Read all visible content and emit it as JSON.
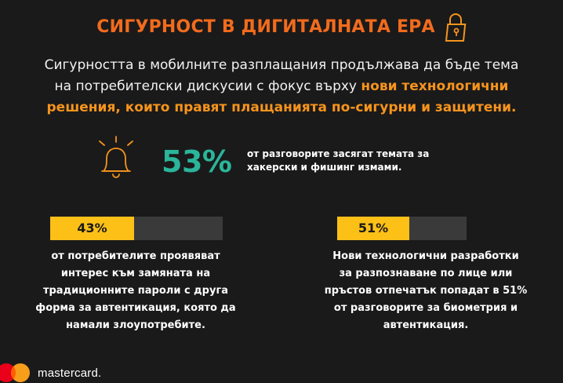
{
  "header": {
    "title": "СИГУРНОСТ В ДИГИТАЛНАТА ЕРА",
    "icon": "lock-icon"
  },
  "intro": {
    "line1": "Сигурността в мобилните разплащания продължава да бъде тема",
    "line2_plain": "на потребителски дискусии с фокус върху ",
    "line2_highlight": "нови технологични",
    "line3_highlight": "решения, които правят плащанията по-сигурни и защитени."
  },
  "main_stat": {
    "icon": "bell-icon",
    "value": "53%",
    "line1": "от разговорите засягат темата за",
    "line2": "хакерски и фишинг измами."
  },
  "stats": [
    {
      "value_label": "43%",
      "value": 0.43,
      "lines": [
        "от потребителите проявяват",
        "интерес към замяната на",
        "традиционните пароли с друга",
        "форма за автентикация, която да",
        "намали злоупотребите."
      ]
    },
    {
      "value_label": "51%",
      "value": 0.51,
      "lines": [
        "Нови технологични разработки",
        "за разпознаване по лице или",
        "пръстов отпечатък попадат в 51%",
        "от разговорите за биометрия и",
        "автентикация."
      ]
    }
  ],
  "footer": {
    "brand": "mastercard.",
    "logo": "mastercard-logo"
  },
  "colors": {
    "background": "#1a1a1a",
    "title": "#f26b1d",
    "highlight": "#f7941d",
    "big_stat": "#2bb59a",
    "bar_fill": "#fcc017",
    "bar_track": "#3a3a3a"
  }
}
